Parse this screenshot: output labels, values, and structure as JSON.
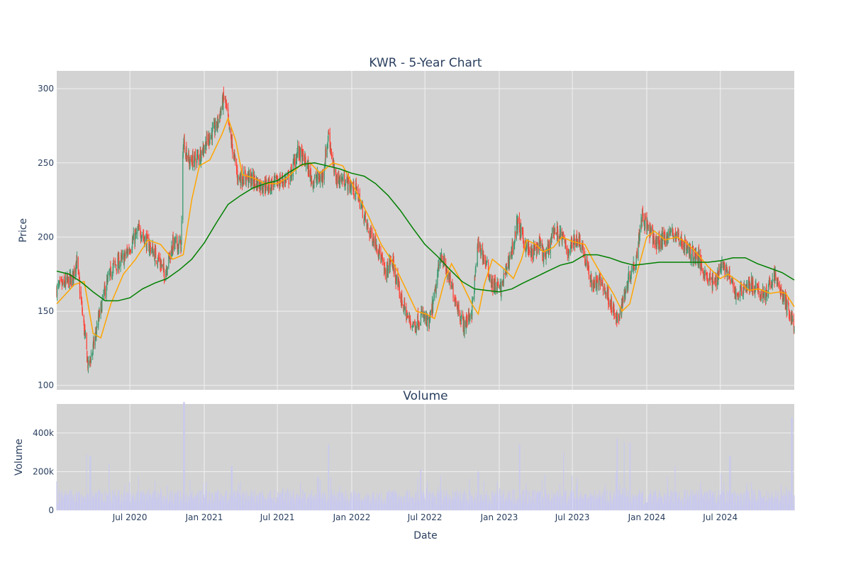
{
  "chart_data": [
    {
      "type": "candlestick",
      "title": "KWR - 5-Year Chart",
      "xlabel": "",
      "ylabel": "Price",
      "ylim": [
        97,
        312
      ],
      "yticks": [
        100,
        150,
        200,
        250,
        300
      ],
      "x_range": [
        "2020-01-02",
        "2024-12-31"
      ],
      "grid": true,
      "legend": "none",
      "colors": {
        "increasing": "#3d9970",
        "decreasing": "#ff4136",
        "ma_short": "#ffa500",
        "ma_long": "#008000",
        "plot_bg": "#d3d3d3",
        "grid": "#f0f0f0"
      },
      "price_anchors": [
        [
          "2020-01-02",
          165
        ],
        [
          "2020-02-10",
          172
        ],
        [
          "2020-02-20",
          185
        ],
        [
          "2020-03-05",
          150
        ],
        [
          "2020-03-20",
          112
        ],
        [
          "2020-04-01",
          125
        ],
        [
          "2020-04-15",
          145
        ],
        [
          "2020-05-01",
          165
        ],
        [
          "2020-05-20",
          180
        ],
        [
          "2020-06-15",
          185
        ],
        [
          "2020-07-10",
          198
        ],
        [
          "2020-07-25",
          205
        ],
        [
          "2020-08-15",
          195
        ],
        [
          "2020-09-10",
          185
        ],
        [
          "2020-09-25",
          175
        ],
        [
          "2020-10-15",
          195
        ],
        [
          "2020-11-05",
          195
        ],
        [
          "2020-11-10",
          265
        ],
        [
          "2020-11-25",
          250
        ],
        [
          "2020-12-20",
          255
        ],
        [
          "2021-01-15",
          268
        ],
        [
          "2021-02-01",
          275
        ],
        [
          "2021-02-20",
          295
        ],
        [
          "2021-03-05",
          270
        ],
        [
          "2021-03-25",
          240
        ],
        [
          "2021-04-20",
          240
        ],
        [
          "2021-05-20",
          235
        ],
        [
          "2021-06-15",
          235
        ],
        [
          "2021-07-10",
          238
        ],
        [
          "2021-08-01",
          240
        ],
        [
          "2021-08-20",
          258
        ],
        [
          "2021-09-10",
          250
        ],
        [
          "2021-09-25",
          238
        ],
        [
          "2021-10-20",
          240
        ],
        [
          "2021-11-05",
          270
        ],
        [
          "2021-11-20",
          240
        ],
        [
          "2021-12-15",
          238
        ],
        [
          "2022-01-15",
          230
        ],
        [
          "2022-02-10",
          205
        ],
        [
          "2022-03-05",
          195
        ],
        [
          "2022-03-25",
          175
        ],
        [
          "2022-04-10",
          185
        ],
        [
          "2022-05-01",
          160
        ],
        [
          "2022-05-20",
          145
        ],
        [
          "2022-06-05",
          140
        ],
        [
          "2022-06-25",
          148
        ],
        [
          "2022-07-10",
          140
        ],
        [
          "2022-07-25",
          160
        ],
        [
          "2022-08-10",
          190
        ],
        [
          "2022-08-25",
          175
        ],
        [
          "2022-09-15",
          158
        ],
        [
          "2022-10-05",
          140
        ],
        [
          "2022-10-25",
          150
        ],
        [
          "2022-11-10",
          195
        ],
        [
          "2022-11-25",
          185
        ],
        [
          "2022-12-15",
          168
        ],
        [
          "2023-01-05",
          165
        ],
        [
          "2023-01-20",
          180
        ],
        [
          "2023-02-05",
          195
        ],
        [
          "2023-02-15",
          210
        ],
        [
          "2023-03-01",
          198
        ],
        [
          "2023-03-20",
          188
        ],
        [
          "2023-04-10",
          195
        ],
        [
          "2023-04-25",
          185
        ],
        [
          "2023-05-15",
          205
        ],
        [
          "2023-06-05",
          200
        ],
        [
          "2023-06-20",
          190
        ],
        [
          "2023-07-10",
          200
        ],
        [
          "2023-07-25",
          195
        ],
        [
          "2023-08-05",
          180
        ],
        [
          "2023-08-20",
          168
        ],
        [
          "2023-09-10",
          170
        ],
        [
          "2023-10-01",
          158
        ],
        [
          "2023-10-20",
          142
        ],
        [
          "2023-11-05",
          160
        ],
        [
          "2023-11-20",
          175
        ],
        [
          "2023-12-05",
          185
        ],
        [
          "2023-12-20",
          215
        ],
        [
          "2024-01-05",
          205
        ],
        [
          "2024-01-25",
          195
        ],
        [
          "2024-02-15",
          200
        ],
        [
          "2024-03-05",
          203
        ],
        [
          "2024-03-25",
          198
        ],
        [
          "2024-04-15",
          190
        ],
        [
          "2024-05-05",
          187
        ],
        [
          "2024-05-25",
          175
        ],
        [
          "2024-06-15",
          168
        ],
        [
          "2024-07-05",
          183
        ],
        [
          "2024-07-20",
          175
        ],
        [
          "2024-08-10",
          160
        ],
        [
          "2024-08-25",
          166
        ],
        [
          "2024-09-15",
          168
        ],
        [
          "2024-10-05",
          162
        ],
        [
          "2024-10-25",
          162
        ],
        [
          "2024-11-10",
          175
        ],
        [
          "2024-11-25",
          165
        ],
        [
          "2024-12-10",
          155
        ],
        [
          "2024-12-31",
          140
        ]
      ],
      "ma_short": {
        "name": "",
        "points": [
          [
            "2020-01-02",
            155
          ],
          [
            "2020-02-15",
            168
          ],
          [
            "2020-03-10",
            170
          ],
          [
            "2020-04-01",
            135
          ],
          [
            "2020-04-20",
            132
          ],
          [
            "2020-05-15",
            155
          ],
          [
            "2020-06-15",
            175
          ],
          [
            "2020-07-15",
            185
          ],
          [
            "2020-08-15",
            198
          ],
          [
            "2020-09-15",
            195
          ],
          [
            "2020-10-15",
            185
          ],
          [
            "2020-11-10",
            188
          ],
          [
            "2020-12-01",
            225
          ],
          [
            "2020-12-20",
            248
          ],
          [
            "2021-01-15",
            252
          ],
          [
            "2021-02-15",
            270
          ],
          [
            "2021-03-01",
            280
          ],
          [
            "2021-03-20",
            265
          ],
          [
            "2021-04-05",
            242
          ],
          [
            "2021-05-01",
            240
          ],
          [
            "2021-06-01",
            236
          ],
          [
            "2021-07-01",
            236
          ],
          [
            "2021-07-25",
            240
          ],
          [
            "2021-08-25",
            248
          ],
          [
            "2021-09-20",
            250
          ],
          [
            "2021-10-15",
            243
          ],
          [
            "2021-11-15",
            250
          ],
          [
            "2021-12-10",
            248
          ],
          [
            "2022-01-10",
            232
          ],
          [
            "2022-02-15",
            212
          ],
          [
            "2022-03-15",
            195
          ],
          [
            "2022-04-15",
            182
          ],
          [
            "2022-05-15",
            165
          ],
          [
            "2022-06-10",
            150
          ],
          [
            "2022-07-05",
            148
          ],
          [
            "2022-07-25",
            145
          ],
          [
            "2022-08-20",
            172
          ],
          [
            "2022-09-05",
            182
          ],
          [
            "2022-09-25",
            172
          ],
          [
            "2022-10-25",
            155
          ],
          [
            "2022-11-10",
            148
          ],
          [
            "2022-11-25",
            168
          ],
          [
            "2022-12-15",
            185
          ],
          [
            "2023-01-15",
            178
          ],
          [
            "2023-02-05",
            172
          ],
          [
            "2023-02-25",
            185
          ],
          [
            "2023-03-10",
            198
          ],
          [
            "2023-04-01",
            195
          ],
          [
            "2023-04-20",
            190
          ],
          [
            "2023-05-15",
            193
          ],
          [
            "2023-06-05",
            200
          ],
          [
            "2023-07-01",
            197
          ],
          [
            "2023-08-01",
            195
          ],
          [
            "2023-08-20",
            185
          ],
          [
            "2023-09-10",
            175
          ],
          [
            "2023-10-10",
            162
          ],
          [
            "2023-11-01",
            150
          ],
          [
            "2023-11-20",
            155
          ],
          [
            "2023-12-10",
            178
          ],
          [
            "2024-01-01",
            200
          ],
          [
            "2024-01-20",
            204
          ],
          [
            "2024-02-15",
            198
          ],
          [
            "2024-03-15",
            200
          ],
          [
            "2024-04-05",
            197
          ],
          [
            "2024-05-01",
            190
          ],
          [
            "2024-06-01",
            180
          ],
          [
            "2024-07-01",
            172
          ],
          [
            "2024-07-20",
            175
          ],
          [
            "2024-08-15",
            170
          ],
          [
            "2024-09-10",
            164
          ],
          [
            "2024-10-05",
            165
          ],
          [
            "2024-11-01",
            162
          ],
          [
            "2024-11-25",
            163
          ],
          [
            "2024-12-10",
            162
          ],
          [
            "2024-12-31",
            153
          ]
        ]
      },
      "ma_long": {
        "name": "",
        "points": [
          [
            "2020-01-02",
            177
          ],
          [
            "2020-02-01",
            175
          ],
          [
            "2020-03-01",
            170
          ],
          [
            "2020-04-01",
            163
          ],
          [
            "2020-05-01",
            157
          ],
          [
            "2020-06-01",
            157
          ],
          [
            "2020-07-01",
            159
          ],
          [
            "2020-08-01",
            165
          ],
          [
            "2020-09-01",
            169
          ],
          [
            "2020-10-01",
            172
          ],
          [
            "2020-11-01",
            178
          ],
          [
            "2020-12-01",
            185
          ],
          [
            "2021-01-01",
            196
          ],
          [
            "2021-02-01",
            210
          ],
          [
            "2021-03-01",
            222
          ],
          [
            "2021-04-01",
            228
          ],
          [
            "2021-05-01",
            233
          ],
          [
            "2021-06-01",
            236
          ],
          [
            "2021-07-01",
            238
          ],
          [
            "2021-08-01",
            244
          ],
          [
            "2021-09-01",
            249
          ],
          [
            "2021-10-01",
            250
          ],
          [
            "2021-11-01",
            248
          ],
          [
            "2021-12-01",
            246
          ],
          [
            "2022-01-01",
            243
          ],
          [
            "2022-02-01",
            241
          ],
          [
            "2022-03-01",
            236
          ],
          [
            "2022-04-01",
            228
          ],
          [
            "2022-05-01",
            218
          ],
          [
            "2022-06-01",
            206
          ],
          [
            "2022-07-01",
            195
          ],
          [
            "2022-08-01",
            187
          ],
          [
            "2022-09-01",
            178
          ],
          [
            "2022-10-01",
            170
          ],
          [
            "2022-11-01",
            165
          ],
          [
            "2022-12-01",
            164
          ],
          [
            "2023-01-01",
            163
          ],
          [
            "2023-02-01",
            165
          ],
          [
            "2023-03-01",
            169
          ],
          [
            "2023-04-01",
            173
          ],
          [
            "2023-05-01",
            177
          ],
          [
            "2023-06-01",
            181
          ],
          [
            "2023-07-01",
            183
          ],
          [
            "2023-08-01",
            188
          ],
          [
            "2023-09-01",
            188
          ],
          [
            "2023-10-01",
            186
          ],
          [
            "2023-11-01",
            183
          ],
          [
            "2023-12-01",
            181
          ],
          [
            "2024-01-01",
            182
          ],
          [
            "2024-02-01",
            183
          ],
          [
            "2024-03-01",
            183
          ],
          [
            "2024-04-01",
            183
          ],
          [
            "2024-05-01",
            183
          ],
          [
            "2024-06-01",
            183
          ],
          [
            "2024-07-01",
            184
          ],
          [
            "2024-08-01",
            186
          ],
          [
            "2024-09-01",
            186
          ],
          [
            "2024-10-01",
            182
          ],
          [
            "2024-11-01",
            179
          ],
          [
            "2024-12-01",
            176
          ],
          [
            "2024-12-31",
            171
          ]
        ]
      }
    },
    {
      "type": "bar",
      "title": "Volume",
      "xlabel": "Date",
      "ylabel": "Volume",
      "ylim": [
        0,
        550000
      ],
      "yticks": [
        0,
        200000,
        400000
      ],
      "ytick_labels": [
        "0",
        "200k",
        "400k"
      ],
      "x_range": [
        "2020-01-02",
        "2024-12-31"
      ],
      "xtick_dates": [
        "2020-07-01",
        "2021-01-01",
        "2021-07-01",
        "2022-01-01",
        "2022-07-01",
        "2023-01-01",
        "2023-07-01",
        "2024-01-01",
        "2024-07-01"
      ],
      "xtick_labels": [
        "Jul 2020",
        "Jan 2021",
        "Jul 2021",
        "Jan 2022",
        "Jul 2022",
        "Jan 2023",
        "Jul 2023",
        "Jan 2024",
        "Jul 2024"
      ],
      "bar_color": "#c9c9ef",
      "baseline_volume": 80000,
      "volume_spikes": [
        [
          "2020-03-15",
          290000
        ],
        [
          "2020-03-25",
          280000
        ],
        [
          "2020-05-10",
          240000
        ],
        [
          "2020-11-12",
          560000
        ],
        [
          "2021-03-10",
          230000
        ],
        [
          "2021-11-05",
          340000
        ],
        [
          "2022-06-20",
          210000
        ],
        [
          "2022-11-10",
          200000
        ],
        [
          "2023-02-20",
          340000
        ],
        [
          "2023-06-10",
          300000
        ],
        [
          "2023-10-20",
          370000
        ],
        [
          "2023-11-05",
          355000
        ],
        [
          "2023-11-20",
          350000
        ],
        [
          "2024-03-10",
          230000
        ],
        [
          "2024-07-25",
          280000
        ],
        [
          "2024-12-25",
          480000
        ]
      ]
    }
  ]
}
